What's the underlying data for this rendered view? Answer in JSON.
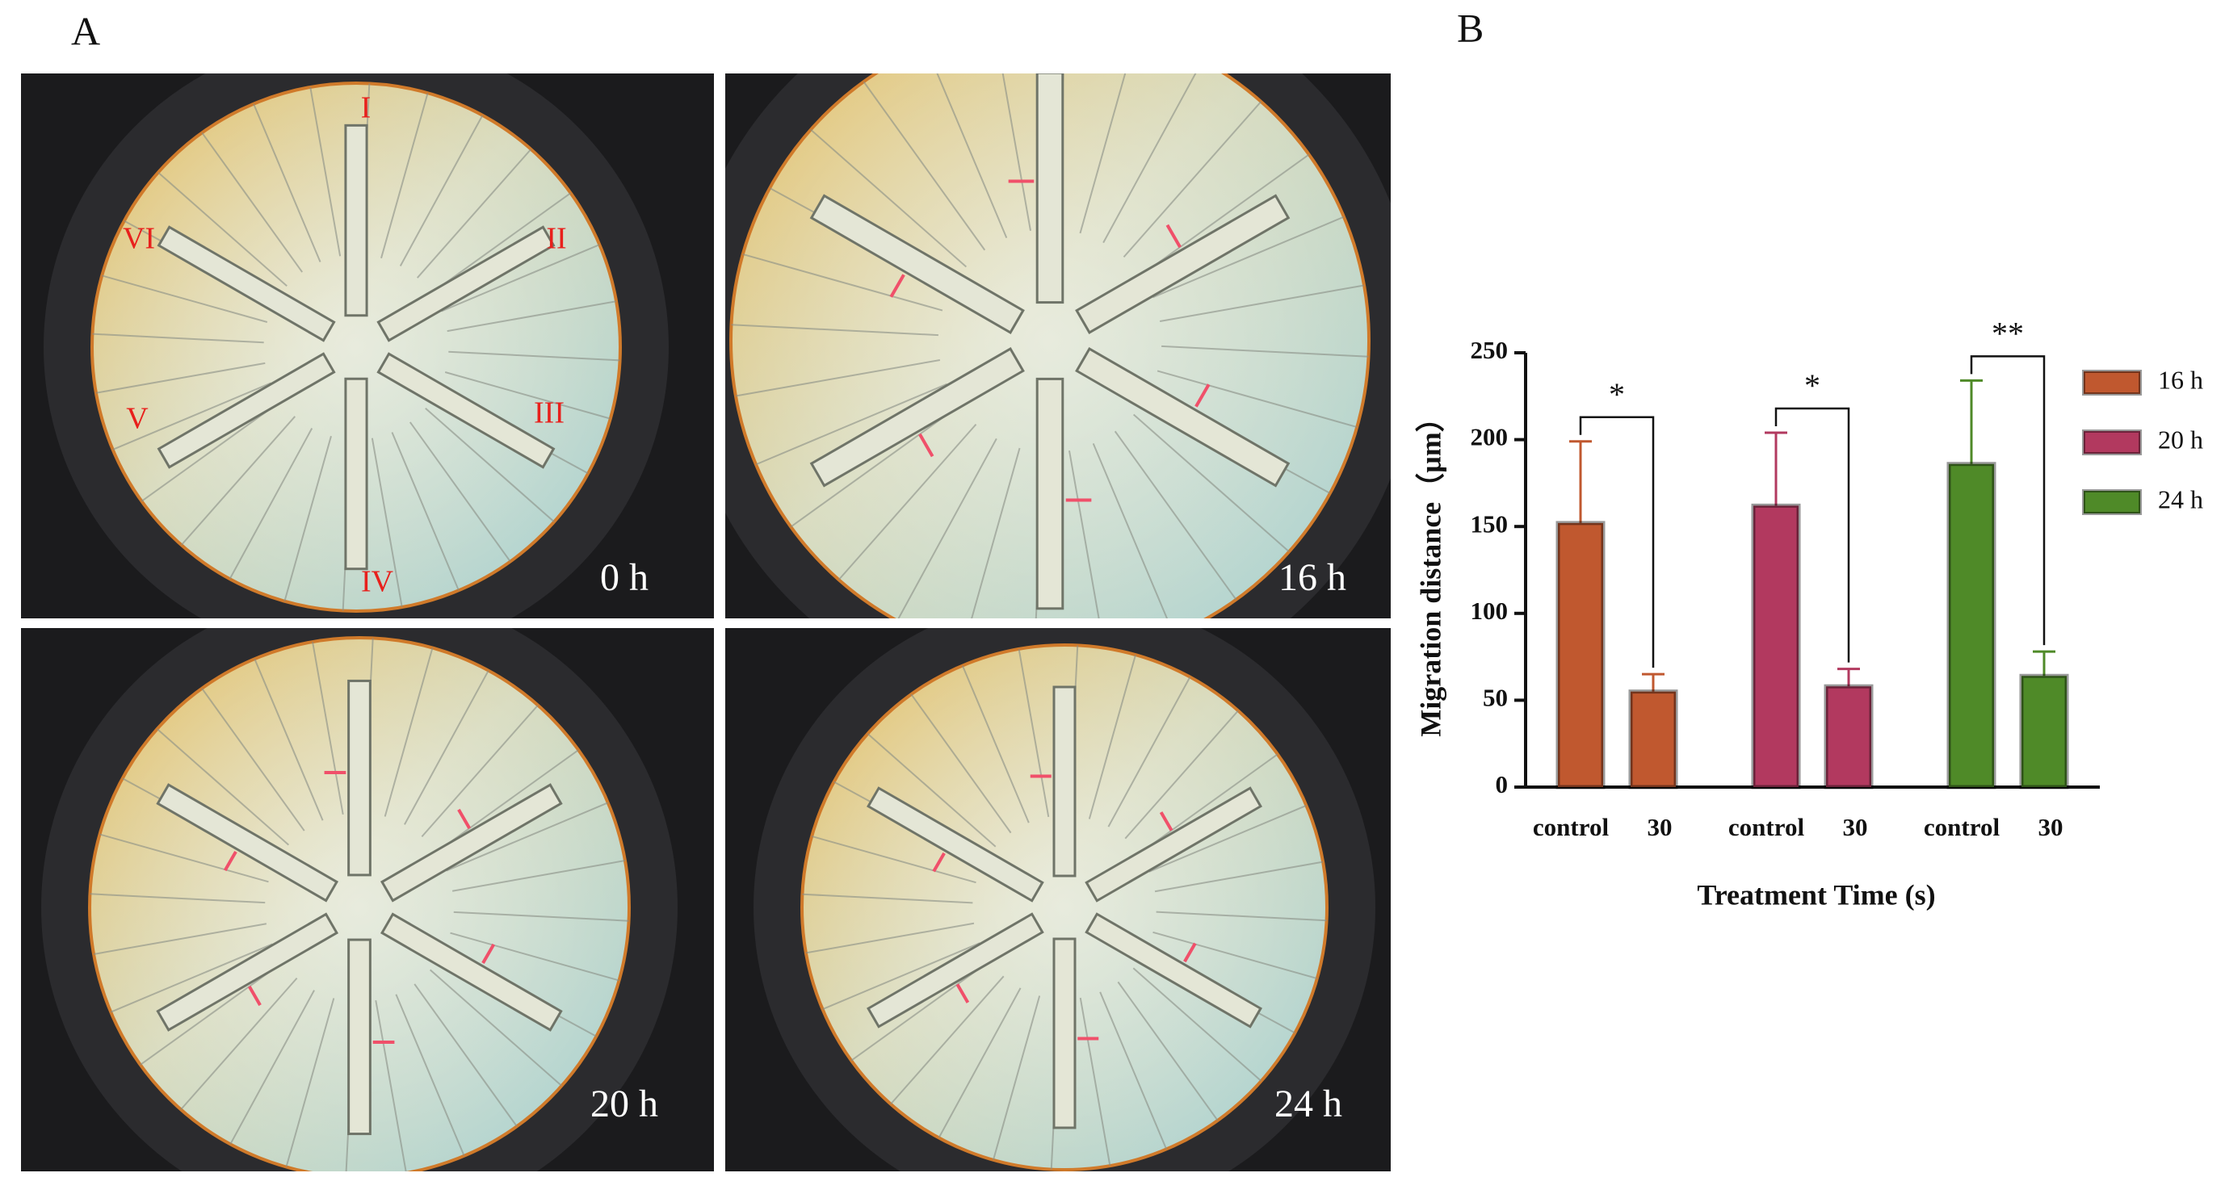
{
  "panel_a": {
    "label": "A",
    "images": [
      {
        "time": "0 h",
        "regions": [
          "I",
          "II",
          "III",
          "IV",
          "V",
          "VI"
        ]
      },
      {
        "time": "16 h"
      },
      {
        "time": "20 h"
      },
      {
        "time": "24 h"
      }
    ]
  },
  "panel_b": {
    "label": "B"
  },
  "chart_data": {
    "type": "bar",
    "xlabel": "Treatment Time (s)",
    "ylabel": "Migration distance（μm）",
    "categories": [
      "control",
      "30"
    ],
    "series": [
      {
        "name": "16 h",
        "color": "#c0582f",
        "values": [
          152,
          55
        ],
        "errors": [
          47,
          10
        ],
        "significance": "*"
      },
      {
        "name": "20 h",
        "color": "#b2395f",
        "values": [
          162,
          58
        ],
        "errors": [
          42,
          10
        ],
        "significance": "*"
      },
      {
        "name": "24 h",
        "color": "#4f8a28",
        "values": [
          186,
          64
        ],
        "errors": [
          48,
          14
        ],
        "significance": "**"
      }
    ],
    "ylim": [
      0,
      250
    ],
    "yticks": [
      0,
      50,
      100,
      150,
      200,
      250
    ],
    "legend": "right"
  }
}
